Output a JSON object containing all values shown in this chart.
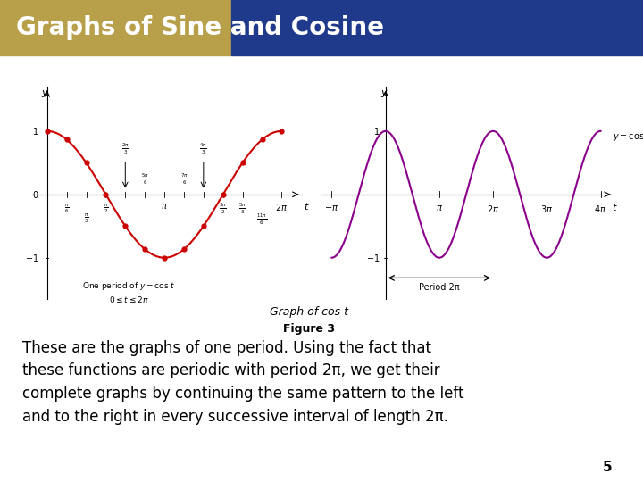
{
  "title": "Graphs of Sine and Cosine",
  "title_bg_left": "#B8A04A",
  "title_bg_right": "#1F3A8A",
  "title_color": "#FFFFFF",
  "slide_bg": "#FFFFFF",
  "right_bar_color": "#1F3A8A",
  "body_text": "These are the graphs of one period. Using the fact that\nthese functions are periodic with period 2π, we get their\ncomplete graphs by continuing the same pattern to the left\nand to the right in every successive interval of length 2π.",
  "caption": "Graph of cos t",
  "figure_label": "Figure 3",
  "page_number": "5",
  "cos_color_period": "#CC0000",
  "cos_color_full": "#8B008B",
  "period_label": "Period 2π"
}
